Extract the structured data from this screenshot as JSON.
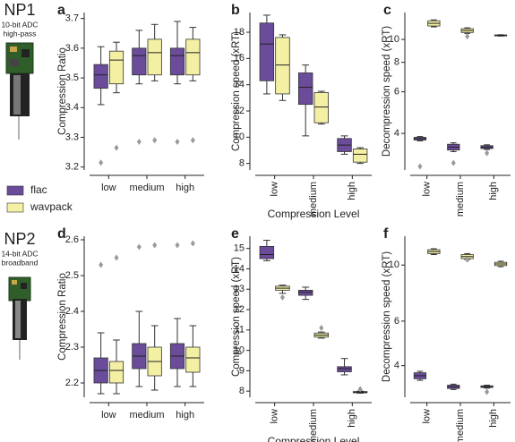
{
  "probes": [
    {
      "name": "NP1",
      "caption": [
        "10-bit ADC",
        "high-pass"
      ]
    },
    {
      "name": "NP2",
      "caption": [
        "14-bit ADC",
        "broadband"
      ]
    }
  ],
  "legend": [
    {
      "name": "flac",
      "color": "#6b4c9a"
    },
    {
      "name": "wavpack",
      "color": "#f3f0a4"
    }
  ],
  "chart_data": [
    {
      "panel": "a",
      "type": "box",
      "ylabel": "Compression Ratio",
      "categories": [
        "low",
        "medium",
        "high"
      ],
      "rotate_labels": false,
      "log": false,
      "ylim": [
        3.19,
        3.72
      ],
      "yticks": [
        3.2,
        3.3,
        3.4,
        3.5,
        3.6,
        3.7
      ],
      "series": [
        {
          "boxes": [
            {
              "whislo": 3.41,
              "q1": 3.465,
              "med": 3.51,
              "q3": 3.545,
              "whishi": 3.605,
              "fliers": [
                3.215
              ]
            },
            {
              "whislo": 3.48,
              "q1": 3.51,
              "med": 3.575,
              "q3": 3.6,
              "whishi": 3.66,
              "fliers": [
                3.285
              ]
            },
            {
              "whislo": 3.48,
              "q1": 3.51,
              "med": 3.575,
              "q3": 3.6,
              "whishi": 3.69,
              "fliers": [
                3.285
              ]
            }
          ]
        },
        {
          "boxes": [
            {
              "whislo": 3.45,
              "q1": 3.48,
              "med": 3.56,
              "q3": 3.59,
              "whishi": 3.62,
              "fliers": [
                3.265
              ]
            },
            {
              "whislo": 3.49,
              "q1": 3.51,
              "med": 3.585,
              "q3": 3.63,
              "whishi": 3.68,
              "fliers": [
                3.29
              ]
            },
            {
              "whislo": 3.49,
              "q1": 3.51,
              "med": 3.585,
              "q3": 3.63,
              "whishi": 3.67,
              "fliers": [
                3.29
              ]
            }
          ]
        }
      ]
    },
    {
      "panel": "b",
      "type": "box",
      "ylabel": "Compression speed (xRT)",
      "xlabel": "Compression Level",
      "categories": [
        "low",
        "medium",
        "high"
      ],
      "rotate_labels": true,
      "log": false,
      "ylim": [
        7.5,
        19.5
      ],
      "yticks": [
        8,
        10,
        12,
        14,
        16,
        18
      ],
      "series": [
        {
          "boxes": [
            {
              "whislo": 13.3,
              "q1": 14.3,
              "med": 17.1,
              "q3": 18.7,
              "whishi": 19.3,
              "fliers": []
            },
            {
              "whislo": 10.1,
              "q1": 12.5,
              "med": 13.8,
              "q3": 14.9,
              "whishi": 15.5,
              "fliers": []
            },
            {
              "whislo": 8.7,
              "q1": 8.9,
              "med": 9.4,
              "q3": 9.9,
              "whishi": 10.1,
              "fliers": []
            }
          ]
        },
        {
          "boxes": [
            {
              "whislo": 12.8,
              "q1": 13.3,
              "med": 15.5,
              "q3": 17.6,
              "whishi": 17.8,
              "fliers": []
            },
            {
              "whislo": 11.0,
              "q1": 11.1,
              "med": 12.3,
              "q3": 13.4,
              "whishi": 13.5,
              "fliers": []
            },
            {
              "whislo": 8.0,
              "q1": 8.1,
              "med": 8.7,
              "q3": 9.1,
              "whishi": 9.2,
              "fliers": []
            }
          ]
        }
      ]
    },
    {
      "panel": "c",
      "type": "box",
      "ylabel": "Decompression speed (xRT)",
      "categories": [
        "low",
        "medium",
        "high"
      ],
      "rotate_labels": true,
      "log": true,
      "ylim": [
        2.8,
        13
      ],
      "yticks": [
        4,
        6,
        8,
        10
      ],
      "series": [
        {
          "boxes": [
            {
              "whislo": 3.72,
              "q1": 3.75,
              "med": 3.8,
              "q3": 3.85,
              "whishi": 3.88,
              "fliers": [
                2.9
              ]
            },
            {
              "whislo": 3.35,
              "q1": 3.4,
              "med": 3.5,
              "q3": 3.6,
              "whishi": 3.65,
              "fliers": [
                3.0
              ]
            },
            {
              "whislo": 3.42,
              "q1": 3.45,
              "med": 3.5,
              "q3": 3.55,
              "whishi": 3.58,
              "fliers": [
                3.3
              ]
            }
          ]
        },
        {
          "boxes": [
            {
              "whislo": 11.3,
              "q1": 11.4,
              "med": 11.7,
              "q3": 12.0,
              "whishi": 12.1,
              "fliers": []
            },
            {
              "whislo": 10.6,
              "q1": 10.7,
              "med": 10.9,
              "q3": 11.1,
              "whishi": 11.2,
              "fliers": [
                10.3
              ]
            },
            {
              "whislo": 10.33,
              "q1": 10.35,
              "med": 10.4,
              "q3": 10.45,
              "whishi": 10.47,
              "fliers": []
            }
          ]
        }
      ]
    },
    {
      "panel": "d",
      "type": "box",
      "ylabel": "Compression Ratio",
      "categories": [
        "low",
        "medium",
        "high"
      ],
      "rotate_labels": false,
      "log": false,
      "ylim": [
        2.16,
        2.61
      ],
      "yticks": [
        2.2,
        2.3,
        2.4,
        2.5,
        2.6
      ],
      "series": [
        {
          "boxes": [
            {
              "whislo": 2.17,
              "q1": 2.2,
              "med": 2.235,
              "q3": 2.27,
              "whishi": 2.34,
              "fliers": [
                2.53
              ]
            },
            {
              "whislo": 2.19,
              "q1": 2.24,
              "med": 2.275,
              "q3": 2.31,
              "whishi": 2.4,
              "fliers": [
                2.58
              ]
            },
            {
              "whislo": 2.19,
              "q1": 2.24,
              "med": 2.275,
              "q3": 2.31,
              "whishi": 2.38,
              "fliers": [
                2.585
              ]
            }
          ]
        },
        {
          "boxes": [
            {
              "whislo": 2.17,
              "q1": 2.2,
              "med": 2.235,
              "q3": 2.26,
              "whishi": 2.32,
              "fliers": [
                2.55
              ]
            },
            {
              "whislo": 2.18,
              "q1": 2.22,
              "med": 2.26,
              "q3": 2.3,
              "whishi": 2.36,
              "fliers": [
                2.585
              ]
            },
            {
              "whislo": 2.19,
              "q1": 2.23,
              "med": 2.27,
              "q3": 2.3,
              "whishi": 2.36,
              "fliers": [
                2.59
              ]
            }
          ]
        }
      ]
    },
    {
      "panel": "e",
      "type": "box",
      "ylabel": "Compression speed (xRT)",
      "xlabel": "Compression Level",
      "categories": [
        "low",
        "medium",
        "high"
      ],
      "rotate_labels": true,
      "log": false,
      "ylim": [
        7.7,
        15.6
      ],
      "yticks": [
        8,
        9,
        10,
        11,
        12,
        13,
        14,
        15
      ],
      "series": [
        {
          "boxes": [
            {
              "whislo": 14.4,
              "q1": 14.5,
              "med": 14.7,
              "q3": 15.1,
              "whishi": 15.4,
              "fliers": []
            },
            {
              "whislo": 12.5,
              "q1": 12.7,
              "med": 12.85,
              "q3": 12.95,
              "whishi": 13.1,
              "fliers": []
            },
            {
              "whislo": 8.8,
              "q1": 8.95,
              "med": 9.1,
              "q3": 9.2,
              "whishi": 9.6,
              "fliers": []
            }
          ]
        },
        {
          "boxes": [
            {
              "whislo": 12.8,
              "q1": 12.95,
              "med": 13.05,
              "q3": 13.15,
              "whishi": 13.2,
              "fliers": [
                12.6
              ]
            },
            {
              "whislo": 10.6,
              "q1": 10.65,
              "med": 10.75,
              "q3": 10.85,
              "whishi": 10.9,
              "fliers": [
                11.1
              ]
            },
            {
              "whislo": 7.9,
              "q1": 7.92,
              "med": 7.95,
              "q3": 7.98,
              "whishi": 8.0,
              "fliers": [
                8.1
              ]
            }
          ]
        }
      ]
    },
    {
      "panel": "f",
      "type": "box",
      "ylabel": "Decompression speed (xRT)",
      "categories": [
        "low",
        "medium",
        "high"
      ],
      "rotate_labels": true,
      "log": true,
      "ylim": [
        3.0,
        13
      ],
      "yticks": [
        4,
        6,
        10
      ],
      "series": [
        {
          "boxes": [
            {
              "whislo": 3.5,
              "q1": 3.55,
              "med": 3.65,
              "q3": 3.75,
              "whishi": 3.8,
              "fliers": []
            },
            {
              "whislo": 3.22,
              "q1": 3.25,
              "med": 3.3,
              "q3": 3.35,
              "whishi": 3.38,
              "fliers": []
            },
            {
              "whislo": 3.26,
              "q1": 3.28,
              "med": 3.3,
              "q3": 3.33,
              "whishi": 3.35,
              "fliers": [
                3.15
              ]
            }
          ]
        },
        {
          "boxes": [
            {
              "whislo": 11.0,
              "q1": 11.1,
              "med": 11.3,
              "q3": 11.5,
              "whishi": 11.6,
              "fliers": []
            },
            {
              "whislo": 10.5,
              "q1": 10.6,
              "med": 10.8,
              "q3": 11.0,
              "whishi": 11.1,
              "fliers": [
                10.5
              ]
            },
            {
              "whislo": 9.85,
              "q1": 9.95,
              "med": 10.1,
              "q3": 10.25,
              "whishi": 10.35,
              "fliers": []
            }
          ]
        }
      ]
    }
  ]
}
